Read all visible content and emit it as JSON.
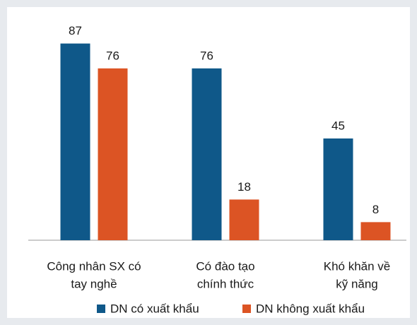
{
  "chart_data": {
    "type": "bar",
    "categories": [
      [
        "Công nhân SX có",
        "tay nghề"
      ],
      [
        "Có đào tạo",
        "chính thức"
      ],
      [
        "Khó khăn về",
        "kỹ năng"
      ]
    ],
    "series": [
      {
        "name": "DN có xuất khẩu",
        "color": "#0f5889",
        "values": [
          87,
          76,
          45
        ]
      },
      {
        "name": "DN không xuất khẩu",
        "color": "#dc5424",
        "values": [
          76,
          18,
          8
        ]
      }
    ],
    "ylim": [
      0,
      100
    ]
  }
}
